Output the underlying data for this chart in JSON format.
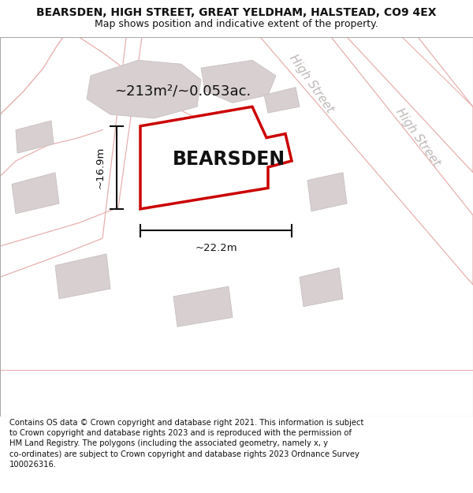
{
  "title": "BEARSDEN, HIGH STREET, GREAT YELDHAM, HALSTEAD, CO9 4EX",
  "subtitle": "Map shows position and indicative extent of the property.",
  "footer": "Contains OS data © Crown copyright and database right 2021. This information is subject\nto Crown copyright and database rights 2023 and is reproduced with the permission of\nHM Land Registry. The polygons (including the associated geometry, namely x, y\nco-ordinates) are subject to Crown copyright and database rights 2023 Ordnance Survey\n100026316.",
  "area_label": "~213m²/~0.053ac.",
  "property_label": "BEARSDEN",
  "dim_width": "~22.2m",
  "dim_height": "~16.9m",
  "street_label_1": "High Street",
  "street_label_2": "High Street",
  "map_bg": "#f7f2f2",
  "property_fill": "#f0ecec",
  "property_edge": "#cc0000",
  "dim_color": "#111111",
  "street_text_color": "#c0b8b8",
  "building_fill": "#d8d0d0",
  "building_edge": "#c8c0c0",
  "road_outline_color": "#e8b0b0",
  "title_fontsize": 10,
  "subtitle_fontsize": 9,
  "footer_fontsize": 7.2,
  "area_fontsize": 13,
  "prop_label_fontsize": 17,
  "street_fontsize": 11,
  "dim_fontsize": 9.5
}
